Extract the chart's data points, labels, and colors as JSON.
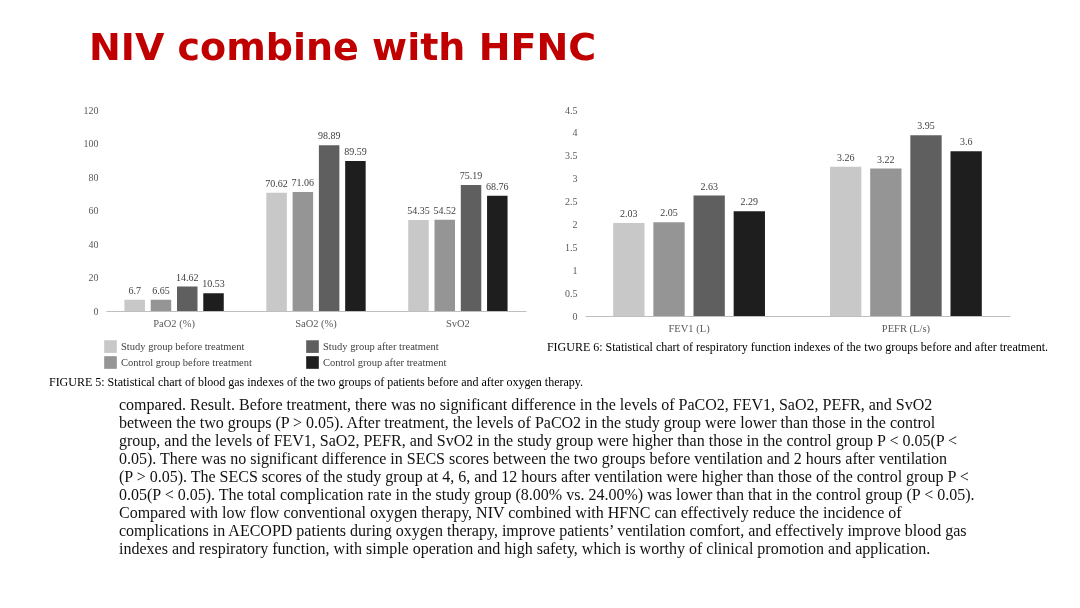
{
  "chart_data": [
    {
      "type": "bar",
      "title": "NIV combine with HFNC",
      "categories": [
        "PaO2 (%)",
        "SaO2 (%)",
        "SvO2"
      ],
      "series": [
        {
          "name": "Study group before treatment",
          "color": "#c8c8c8",
          "values": [
            6.7,
            70.62,
            54.35
          ]
        },
        {
          "name": "Control group before treatment",
          "color": "#959595",
          "values": [
            6.65,
            71.06,
            54.52
          ]
        },
        {
          "name": "Study group after treatment",
          "color": "#5f5f5f",
          "values": [
            14.62,
            98.89,
            75.19
          ]
        },
        {
          "name": "Control group after treatment",
          "color": "#1e1e1e",
          "values": [
            10.53,
            89.59,
            68.76
          ]
        }
      ],
      "ylim": [
        0,
        120
      ],
      "yticks": [
        0,
        20,
        40,
        60,
        80,
        100,
        120
      ],
      "data_labels": true,
      "legend": "bottom",
      "annotations": [
        "FIGURE 5: Statistical chart of blood gas indexes of the two groups of patients before and after oxygen therapy.",
        "compared. Result. Before treatment, there was no significant difference in the levels of PaCO2, FEV1, SaO2, PEFR, and SvO2 between the two groups (P > 0.05). After treatment, the levels of PaCO2 in the study group were lower than those in the control group, and the levels of FEV1, SaO2, PEFR, and SvO2 in the study group were higher than those in the control group P < 0.05(P < 0.05). There was no significant difference in SECS scores between the two groups before ventilation and 2 hours after ventilation (P > 0.05). The SECS scores of the study group at 4, 6, and 12 hours after ventilation were higher than those of the control group P < 0.05(P < 0.05). The total complication rate in the study group (8.00% vs. 24.00%) was lower than that in the control group (P < 0.05). Compared with low flow conventional oxygen therapy, NIV combined with HFNC can effectively reduce the incidence of complications in AECOPD patients during oxygen therapy, improve patients’ ventilation comfort, and effectively improve blood gas indexes and respiratory function, with simple operation and high safety, which is worthy of clinical promotion and application."
      ]
    },
    {
      "type": "bar",
      "categories": [
        "FEV1 (L)",
        "PEFR (L/s)"
      ],
      "series": [
        {
          "color": "#c8c8c8",
          "values": [
            2.03,
            3.26
          ]
        },
        {
          "color": "#959595",
          "values": [
            2.05,
            3.22
          ]
        },
        {
          "color": "#5f5f5f",
          "values": [
            2.63,
            3.95
          ]
        },
        {
          "color": "#1e1e1e",
          "values": [
            2.29,
            3.6
          ]
        }
      ],
      "ylim": [
        0,
        4.5
      ],
      "yticks": [
        0,
        0.5,
        1,
        1.5,
        2,
        2.5,
        3,
        3.5,
        4,
        4.5
      ],
      "data_labels": true,
      "annotations": [
        "FIGURE 6: Statistical chart of respiratory function indexes of the two groups before and after treatment."
      ]
    }
  ]
}
